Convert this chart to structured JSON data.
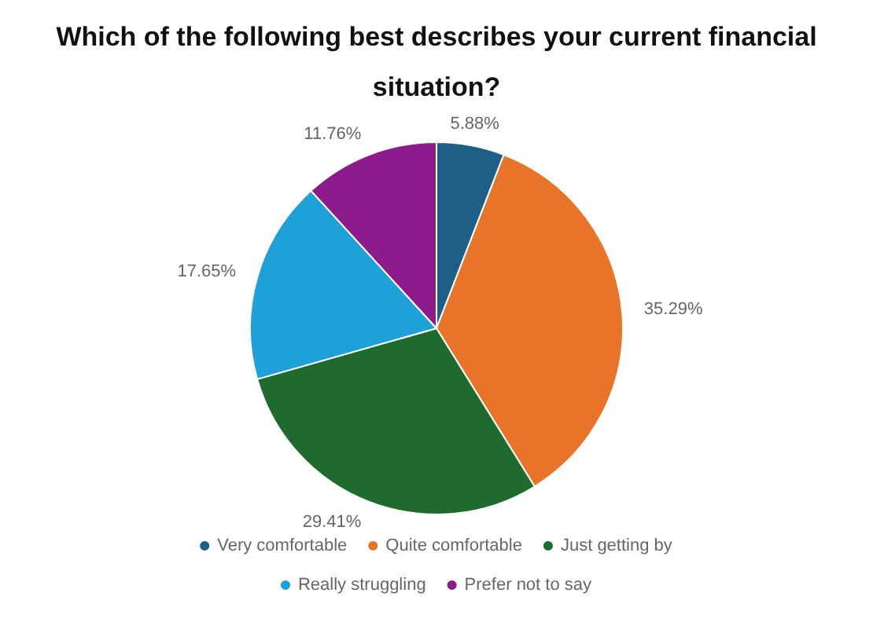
{
  "chart_data": {
    "type": "pie",
    "title": "Which of the following best describes your current financial situation?",
    "categories": [
      "Very comfortable",
      "Quite comfortable",
      "Just getting by",
      "Really struggling",
      "Prefer not to say"
    ],
    "values": [
      5.88,
      35.29,
      29.41,
      17.65,
      11.76
    ],
    "value_labels": [
      "5.88%",
      "35.29%",
      "29.41%",
      "17.65%",
      "11.76%"
    ],
    "colors": [
      "#1d5f86",
      "#e8742a",
      "#1f6b2f",
      "#1ea0d8",
      "#8c1c8c"
    ],
    "legend": "bottom"
  }
}
